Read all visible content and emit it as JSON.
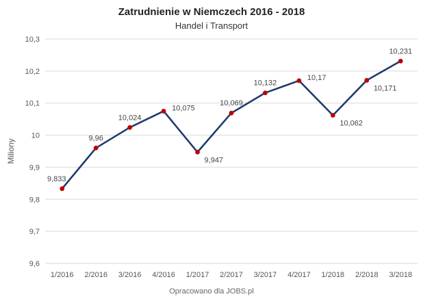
{
  "chart_data": {
    "type": "line",
    "title": "Zatrudnienie w Niemczech 2016 - 2018",
    "subtitle": "Handel i Transport",
    "ylabel": "Miliony",
    "xlabel": "",
    "source": "Opracowano dla JOBS.pl",
    "categories": [
      "1/2016",
      "2/2016",
      "3/2016",
      "4/2016",
      "1/2017",
      "2/2017",
      "3/2017",
      "4/2017",
      "1/2018",
      "2/2018",
      "3/2018"
    ],
    "values": [
      9.833,
      9.96,
      10.024,
      10.075,
      9.947,
      10.069,
      10.132,
      10.17,
      10.062,
      10.171,
      10.231
    ],
    "data_labels": [
      "9,833",
      "9,96",
      "10,024",
      "10,075",
      "9,947",
      "10,069",
      "10,132",
      "10,17",
      "10,062",
      "10,171",
      "10,231"
    ],
    "label_positions": [
      "above-left",
      "above",
      "above",
      "right",
      "below-right",
      "above",
      "above",
      "right",
      "below-right",
      "below-right",
      "above"
    ],
    "ylim": [
      9.6,
      10.3
    ],
    "yticks": [
      9.6,
      9.7,
      9.8,
      9.9,
      10.0,
      10.1,
      10.2,
      10.3
    ],
    "ytick_labels": [
      "9,6",
      "9,7",
      "9,8",
      "9,9",
      "10",
      "10,1",
      "10,2",
      "10,3"
    ],
    "grid": true,
    "line_color": "#1f3a6e",
    "marker_color": "#c00000",
    "grid_color": "#d9d9d9"
  }
}
